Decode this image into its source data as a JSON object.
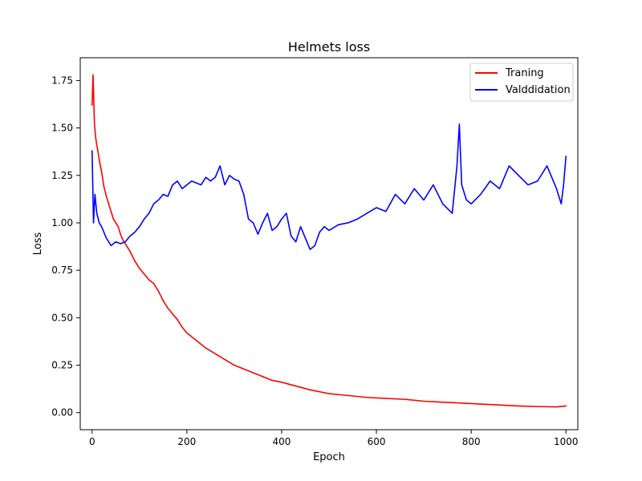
{
  "chart_data": {
    "type": "line",
    "title": "Helmets loss",
    "xlabel": "Epoch",
    "ylabel": "Loss",
    "xlim": [
      -25,
      1025
    ],
    "ylim": [
      -0.09,
      1.87
    ],
    "xticks": [
      0,
      200,
      400,
      600,
      800,
      1000
    ],
    "yticks": [
      0.0,
      0.25,
      0.5,
      0.75,
      1.0,
      1.25,
      1.5,
      1.75
    ],
    "xtick_labels": [
      "0",
      "200",
      "400",
      "600",
      "800",
      "1000"
    ],
    "ytick_labels": [
      "0.00",
      "0.25",
      "0.50",
      "0.75",
      "1.00",
      "1.25",
      "1.50",
      "1.75"
    ],
    "grid": false,
    "legend_position": "top-right",
    "series": [
      {
        "name": "Traning",
        "color": "#ff0000",
        "x": [
          0,
          2,
          5,
          8,
          12,
          16,
          20,
          25,
          30,
          35,
          40,
          45,
          50,
          55,
          60,
          65,
          70,
          75,
          80,
          90,
          100,
          110,
          120,
          130,
          140,
          150,
          160,
          170,
          180,
          190,
          200,
          220,
          240,
          260,
          280,
          300,
          320,
          340,
          360,
          380,
          400,
          430,
          460,
          500,
          540,
          580,
          620,
          660,
          700,
          740,
          780,
          820,
          860,
          900,
          940,
          980,
          1000
        ],
        "y": [
          1.62,
          1.78,
          1.52,
          1.44,
          1.38,
          1.32,
          1.27,
          1.19,
          1.14,
          1.1,
          1.06,
          1.02,
          1.0,
          0.98,
          0.94,
          0.91,
          0.89,
          0.87,
          0.85,
          0.8,
          0.76,
          0.73,
          0.7,
          0.68,
          0.64,
          0.59,
          0.55,
          0.52,
          0.49,
          0.45,
          0.42,
          0.38,
          0.34,
          0.31,
          0.28,
          0.25,
          0.23,
          0.21,
          0.19,
          0.17,
          0.16,
          0.14,
          0.12,
          0.1,
          0.09,
          0.08,
          0.075,
          0.07,
          0.06,
          0.055,
          0.05,
          0.045,
          0.04,
          0.035,
          0.032,
          0.03,
          0.035
        ]
      },
      {
        "name": "Valddidation",
        "color": "#0000ff",
        "x": [
          0,
          3,
          6,
          10,
          15,
          20,
          30,
          40,
          50,
          60,
          70,
          80,
          90,
          100,
          110,
          120,
          130,
          140,
          150,
          160,
          170,
          180,
          190,
          200,
          210,
          220,
          230,
          240,
          250,
          260,
          270,
          280,
          290,
          300,
          310,
          320,
          330,
          340,
          350,
          360,
          370,
          380,
          390,
          400,
          410,
          420,
          430,
          440,
          450,
          460,
          470,
          480,
          490,
          500,
          520,
          540,
          560,
          580,
          600,
          620,
          640,
          660,
          680,
          700,
          720,
          740,
          760,
          770,
          775,
          780,
          790,
          800,
          820,
          840,
          860,
          880,
          900,
          920,
          940,
          960,
          980,
          990,
          995,
          1000
        ],
        "y": [
          1.38,
          1.0,
          1.15,
          1.05,
          1.0,
          0.98,
          0.92,
          0.88,
          0.9,
          0.89,
          0.9,
          0.93,
          0.95,
          0.98,
          1.02,
          1.05,
          1.1,
          1.12,
          1.15,
          1.14,
          1.2,
          1.22,
          1.18,
          1.2,
          1.22,
          1.21,
          1.2,
          1.24,
          1.22,
          1.24,
          1.3,
          1.2,
          1.25,
          1.23,
          1.22,
          1.15,
          1.02,
          1.0,
          0.94,
          1.0,
          1.05,
          0.96,
          0.98,
          1.02,
          1.05,
          0.93,
          0.9,
          0.98,
          0.92,
          0.86,
          0.88,
          0.95,
          0.98,
          0.96,
          0.99,
          1.0,
          1.02,
          1.05,
          1.08,
          1.06,
          1.15,
          1.1,
          1.18,
          1.12,
          1.2,
          1.1,
          1.05,
          1.3,
          1.52,
          1.2,
          1.12,
          1.1,
          1.15,
          1.22,
          1.18,
          1.3,
          1.25,
          1.2,
          1.22,
          1.3,
          1.18,
          1.1,
          1.2,
          1.35
        ]
      }
    ]
  }
}
